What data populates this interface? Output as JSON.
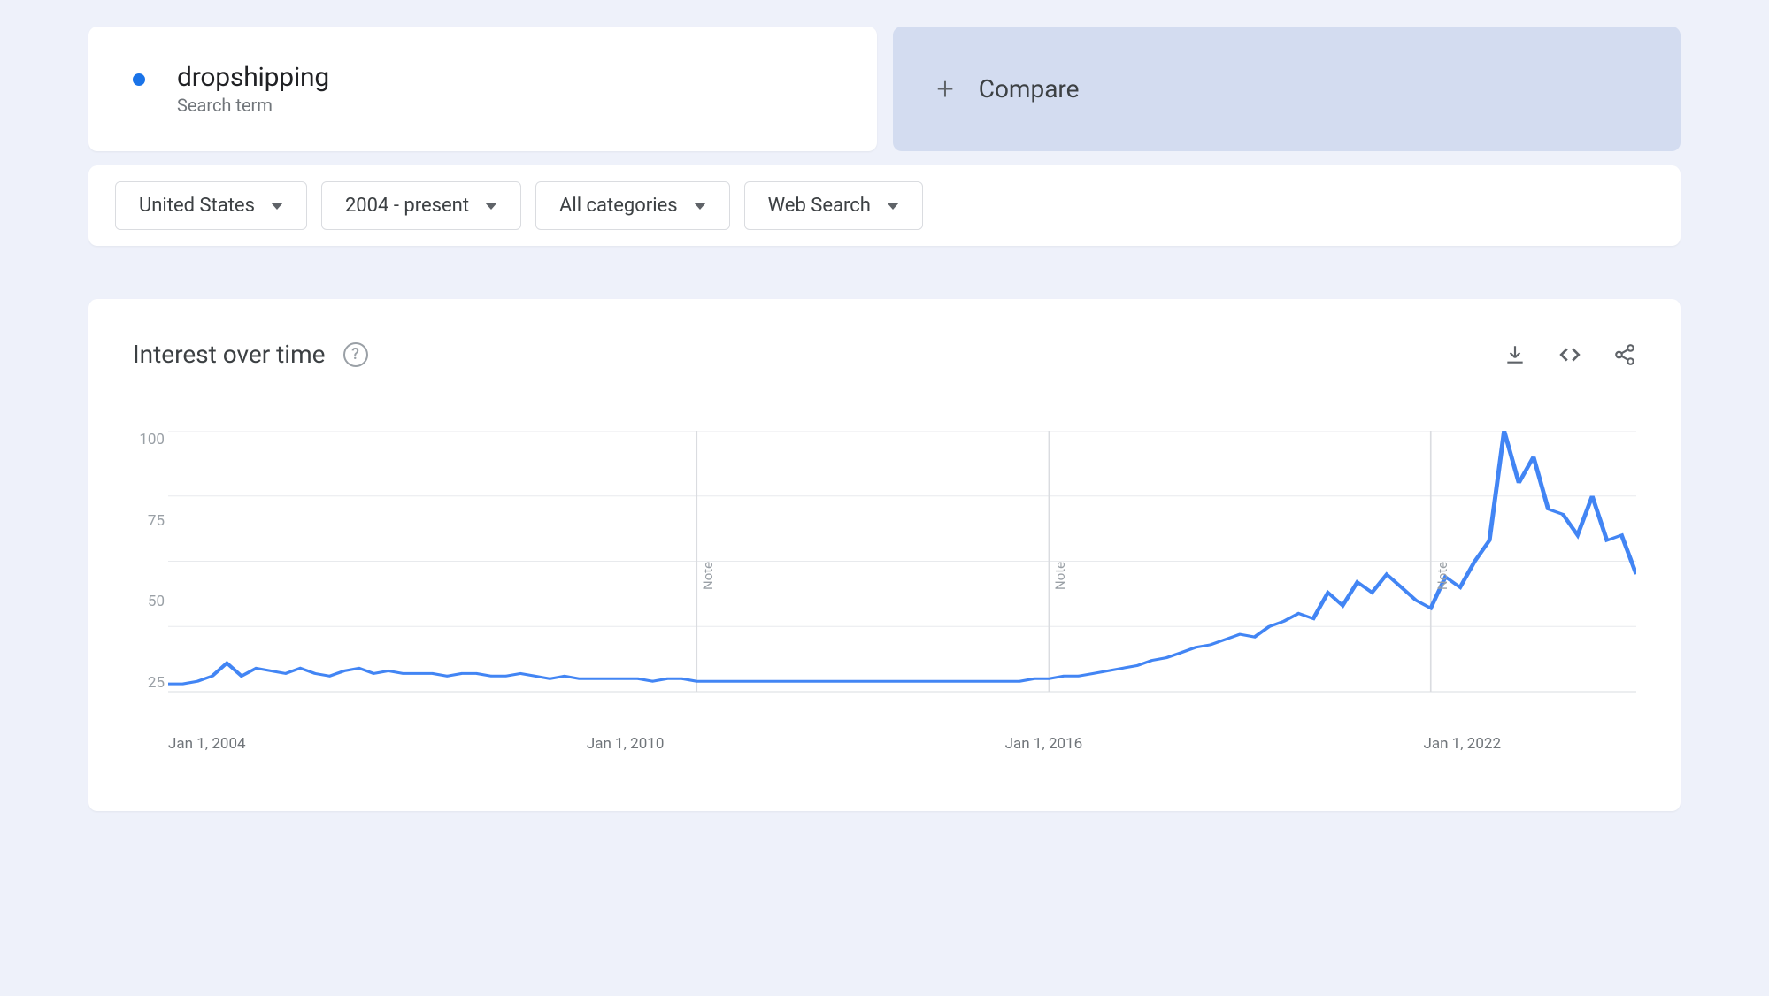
{
  "colors": {
    "page_bg": "#eef1fa",
    "card_bg": "#ffffff",
    "compare_bg": "#d3dcf0",
    "primary_text": "#202124",
    "secondary_text": "#70757a",
    "muted_text": "#9aa0a6",
    "icon_gray": "#5f6368",
    "border": "#dadce0",
    "series_blue": "#4285f4",
    "dot_blue": "#1a73e8",
    "grid": "#e8eaed"
  },
  "term": {
    "label": "dropshipping",
    "subtitle": "Search term",
    "dot_color": "#1a73e8"
  },
  "compare": {
    "label": "Compare"
  },
  "filters": {
    "region": "United States",
    "time_range": "2004 - present",
    "category": "All categories",
    "search_type": "Web Search"
  },
  "chart": {
    "title": "Interest over time",
    "type": "line",
    "y_ticks": [
      100,
      75,
      50,
      25
    ],
    "ylim": [
      0,
      100
    ],
    "x_axis": {
      "labels": [
        {
          "text": "Jan 1, 2004",
          "pos_pct": 0
        },
        {
          "text": "Jan 1, 2010",
          "pos_pct": 28.5
        },
        {
          "text": "Jan 1, 2016",
          "pos_pct": 57
        },
        {
          "text": "Jan 1, 2022",
          "pos_pct": 85.5
        }
      ]
    },
    "vgrid_positions_pct": [
      36,
      60,
      86
    ],
    "note_positions_pct": [
      36,
      60,
      86
    ],
    "note_label": "Note",
    "line_color": "#4285f4",
    "line_width": 3,
    "background_color": "#ffffff",
    "grid_color": "#e8eaed",
    "series": [
      {
        "x": 0,
        "y": 3
      },
      {
        "x": 1,
        "y": 3
      },
      {
        "x": 2,
        "y": 4
      },
      {
        "x": 3,
        "y": 6
      },
      {
        "x": 4,
        "y": 11
      },
      {
        "x": 5,
        "y": 6
      },
      {
        "x": 6,
        "y": 9
      },
      {
        "x": 7,
        "y": 8
      },
      {
        "x": 8,
        "y": 7
      },
      {
        "x": 9,
        "y": 9
      },
      {
        "x": 10,
        "y": 7
      },
      {
        "x": 11,
        "y": 6
      },
      {
        "x": 12,
        "y": 8
      },
      {
        "x": 13,
        "y": 9
      },
      {
        "x": 14,
        "y": 7
      },
      {
        "x": 15,
        "y": 8
      },
      {
        "x": 16,
        "y": 7
      },
      {
        "x": 17,
        "y": 7
      },
      {
        "x": 18,
        "y": 7
      },
      {
        "x": 19,
        "y": 6
      },
      {
        "x": 20,
        "y": 7
      },
      {
        "x": 21,
        "y": 7
      },
      {
        "x": 22,
        "y": 6
      },
      {
        "x": 23,
        "y": 6
      },
      {
        "x": 24,
        "y": 7
      },
      {
        "x": 25,
        "y": 6
      },
      {
        "x": 26,
        "y": 5
      },
      {
        "x": 27,
        "y": 6
      },
      {
        "x": 28,
        "y": 5
      },
      {
        "x": 29,
        "y": 5
      },
      {
        "x": 30,
        "y": 5
      },
      {
        "x": 31,
        "y": 5
      },
      {
        "x": 32,
        "y": 5
      },
      {
        "x": 33,
        "y": 4
      },
      {
        "x": 34,
        "y": 5
      },
      {
        "x": 35,
        "y": 5
      },
      {
        "x": 36,
        "y": 4
      },
      {
        "x": 37,
        "y": 4
      },
      {
        "x": 38,
        "y": 4
      },
      {
        "x": 39,
        "y": 4
      },
      {
        "x": 40,
        "y": 4
      },
      {
        "x": 41,
        "y": 4
      },
      {
        "x": 42,
        "y": 4
      },
      {
        "x": 43,
        "y": 4
      },
      {
        "x": 44,
        "y": 4
      },
      {
        "x": 45,
        "y": 4
      },
      {
        "x": 46,
        "y": 4
      },
      {
        "x": 47,
        "y": 4
      },
      {
        "x": 48,
        "y": 4
      },
      {
        "x": 49,
        "y": 4
      },
      {
        "x": 50,
        "y": 4
      },
      {
        "x": 51,
        "y": 4
      },
      {
        "x": 52,
        "y": 4
      },
      {
        "x": 53,
        "y": 4
      },
      {
        "x": 54,
        "y": 4
      },
      {
        "x": 55,
        "y": 4
      },
      {
        "x": 56,
        "y": 4
      },
      {
        "x": 57,
        "y": 4
      },
      {
        "x": 58,
        "y": 4
      },
      {
        "x": 59,
        "y": 5
      },
      {
        "x": 60,
        "y": 5
      },
      {
        "x": 61,
        "y": 6
      },
      {
        "x": 62,
        "y": 6
      },
      {
        "x": 63,
        "y": 7
      },
      {
        "x": 64,
        "y": 8
      },
      {
        "x": 65,
        "y": 9
      },
      {
        "x": 66,
        "y": 10
      },
      {
        "x": 67,
        "y": 12
      },
      {
        "x": 68,
        "y": 13
      },
      {
        "x": 69,
        "y": 15
      },
      {
        "x": 70,
        "y": 17
      },
      {
        "x": 71,
        "y": 18
      },
      {
        "x": 72,
        "y": 20
      },
      {
        "x": 73,
        "y": 22
      },
      {
        "x": 74,
        "y": 21
      },
      {
        "x": 75,
        "y": 25
      },
      {
        "x": 76,
        "y": 27
      },
      {
        "x": 77,
        "y": 30
      },
      {
        "x": 78,
        "y": 28
      },
      {
        "x": 79,
        "y": 38
      },
      {
        "x": 80,
        "y": 33
      },
      {
        "x": 81,
        "y": 42
      },
      {
        "x": 82,
        "y": 38
      },
      {
        "x": 83,
        "y": 45
      },
      {
        "x": 84,
        "y": 40
      },
      {
        "x": 85,
        "y": 35
      },
      {
        "x": 86,
        "y": 32
      },
      {
        "x": 87,
        "y": 44
      },
      {
        "x": 88,
        "y": 40
      },
      {
        "x": 89,
        "y": 50
      },
      {
        "x": 90,
        "y": 58
      },
      {
        "x": 91,
        "y": 100
      },
      {
        "x": 92,
        "y": 80
      },
      {
        "x": 93,
        "y": 90
      },
      {
        "x": 94,
        "y": 70
      },
      {
        "x": 95,
        "y": 68
      },
      {
        "x": 96,
        "y": 60
      },
      {
        "x": 97,
        "y": 75
      },
      {
        "x": 98,
        "y": 58
      },
      {
        "x": 99,
        "y": 60
      },
      {
        "x": 100,
        "y": 45
      }
    ]
  }
}
